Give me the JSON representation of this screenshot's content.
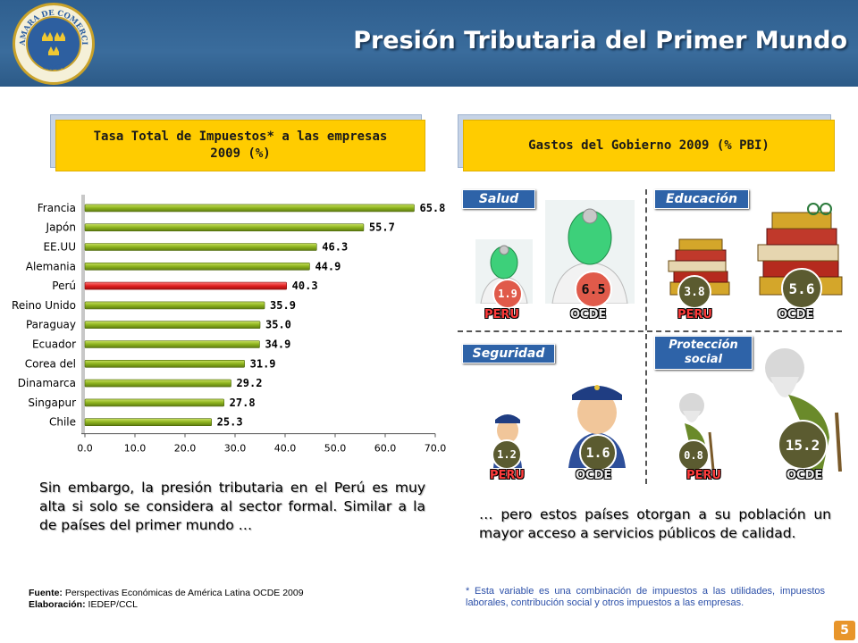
{
  "header": {
    "title": "Presión Tributaria del Primer Mundo",
    "logo_top": "CAMARA DE COMERCIO",
    "logo_bottom": "LIMA"
  },
  "left_box": {
    "title": "Tasa Total de Impuestos* a las empresas 2009 (%)"
  },
  "right_box": {
    "title": "Gastos del Gobierno 2009 (% PBI)"
  },
  "chart_data": {
    "type": "bar",
    "orientation": "horizontal",
    "categories": [
      "Francia",
      "Japón",
      "EE.UU",
      "Alemania",
      "Perú",
      "Reino Unido",
      "Paraguay",
      "Ecuador",
      "Corea del",
      "Dinamarca",
      "Singapur",
      "Chile"
    ],
    "values": [
      65.8,
      55.7,
      46.3,
      44.9,
      40.3,
      35.9,
      35.0,
      34.9,
      31.9,
      29.2,
      27.8,
      25.3
    ],
    "value_labels": [
      "65.8",
      "55.7",
      "46.3",
      "44.9",
      "40.3",
      "35.9",
      "35.0",
      "34.9",
      "31.9",
      "29.2",
      "27.8",
      "25.3"
    ],
    "highlight": "Perú",
    "xlim": [
      0,
      70
    ],
    "xticks": [
      "0.0",
      "10.0",
      "20.0",
      "30.0",
      "40.0",
      "50.0",
      "60.0",
      "70.0"
    ],
    "colors": {
      "default": "#8db31e",
      "highlight": "#e02020"
    }
  },
  "categories": {
    "salud": {
      "label": "Salud",
      "peru": "1.9",
      "ocde": "6.5"
    },
    "educacion": {
      "label": "Educación",
      "peru": "3.8",
      "ocde": "5.6"
    },
    "seguridad": {
      "label": "Seguridad",
      "peru": "1.2",
      "ocde": "1.6"
    },
    "proteccion": {
      "label1": "Protección",
      "label2": "social",
      "peru": "0.8",
      "ocde": "15.2"
    }
  },
  "labels": {
    "peru": "PERU",
    "ocde": "OCDE"
  },
  "text": {
    "left_para": "Sin embargo, la presión tributaria en el Perú es muy alta si solo se considera al sector formal. Similar a la de países del primer mundo …",
    "right_para": "… pero estos países otorgan a su población un mayor acceso a servicios públicos de calidad.",
    "source_label": "Fuente:",
    "source_value": "Perspectivas Económicas de América Latina OCDE 2009",
    "elab_label": "Elaboración:",
    "elab_value": "IEDEP/CCL",
    "note": "* Esta variable es una combinación de impuestos a las utilidades, impuestos laborales, contribución social y otros impuestos a las empresas.",
    "page": "5"
  }
}
